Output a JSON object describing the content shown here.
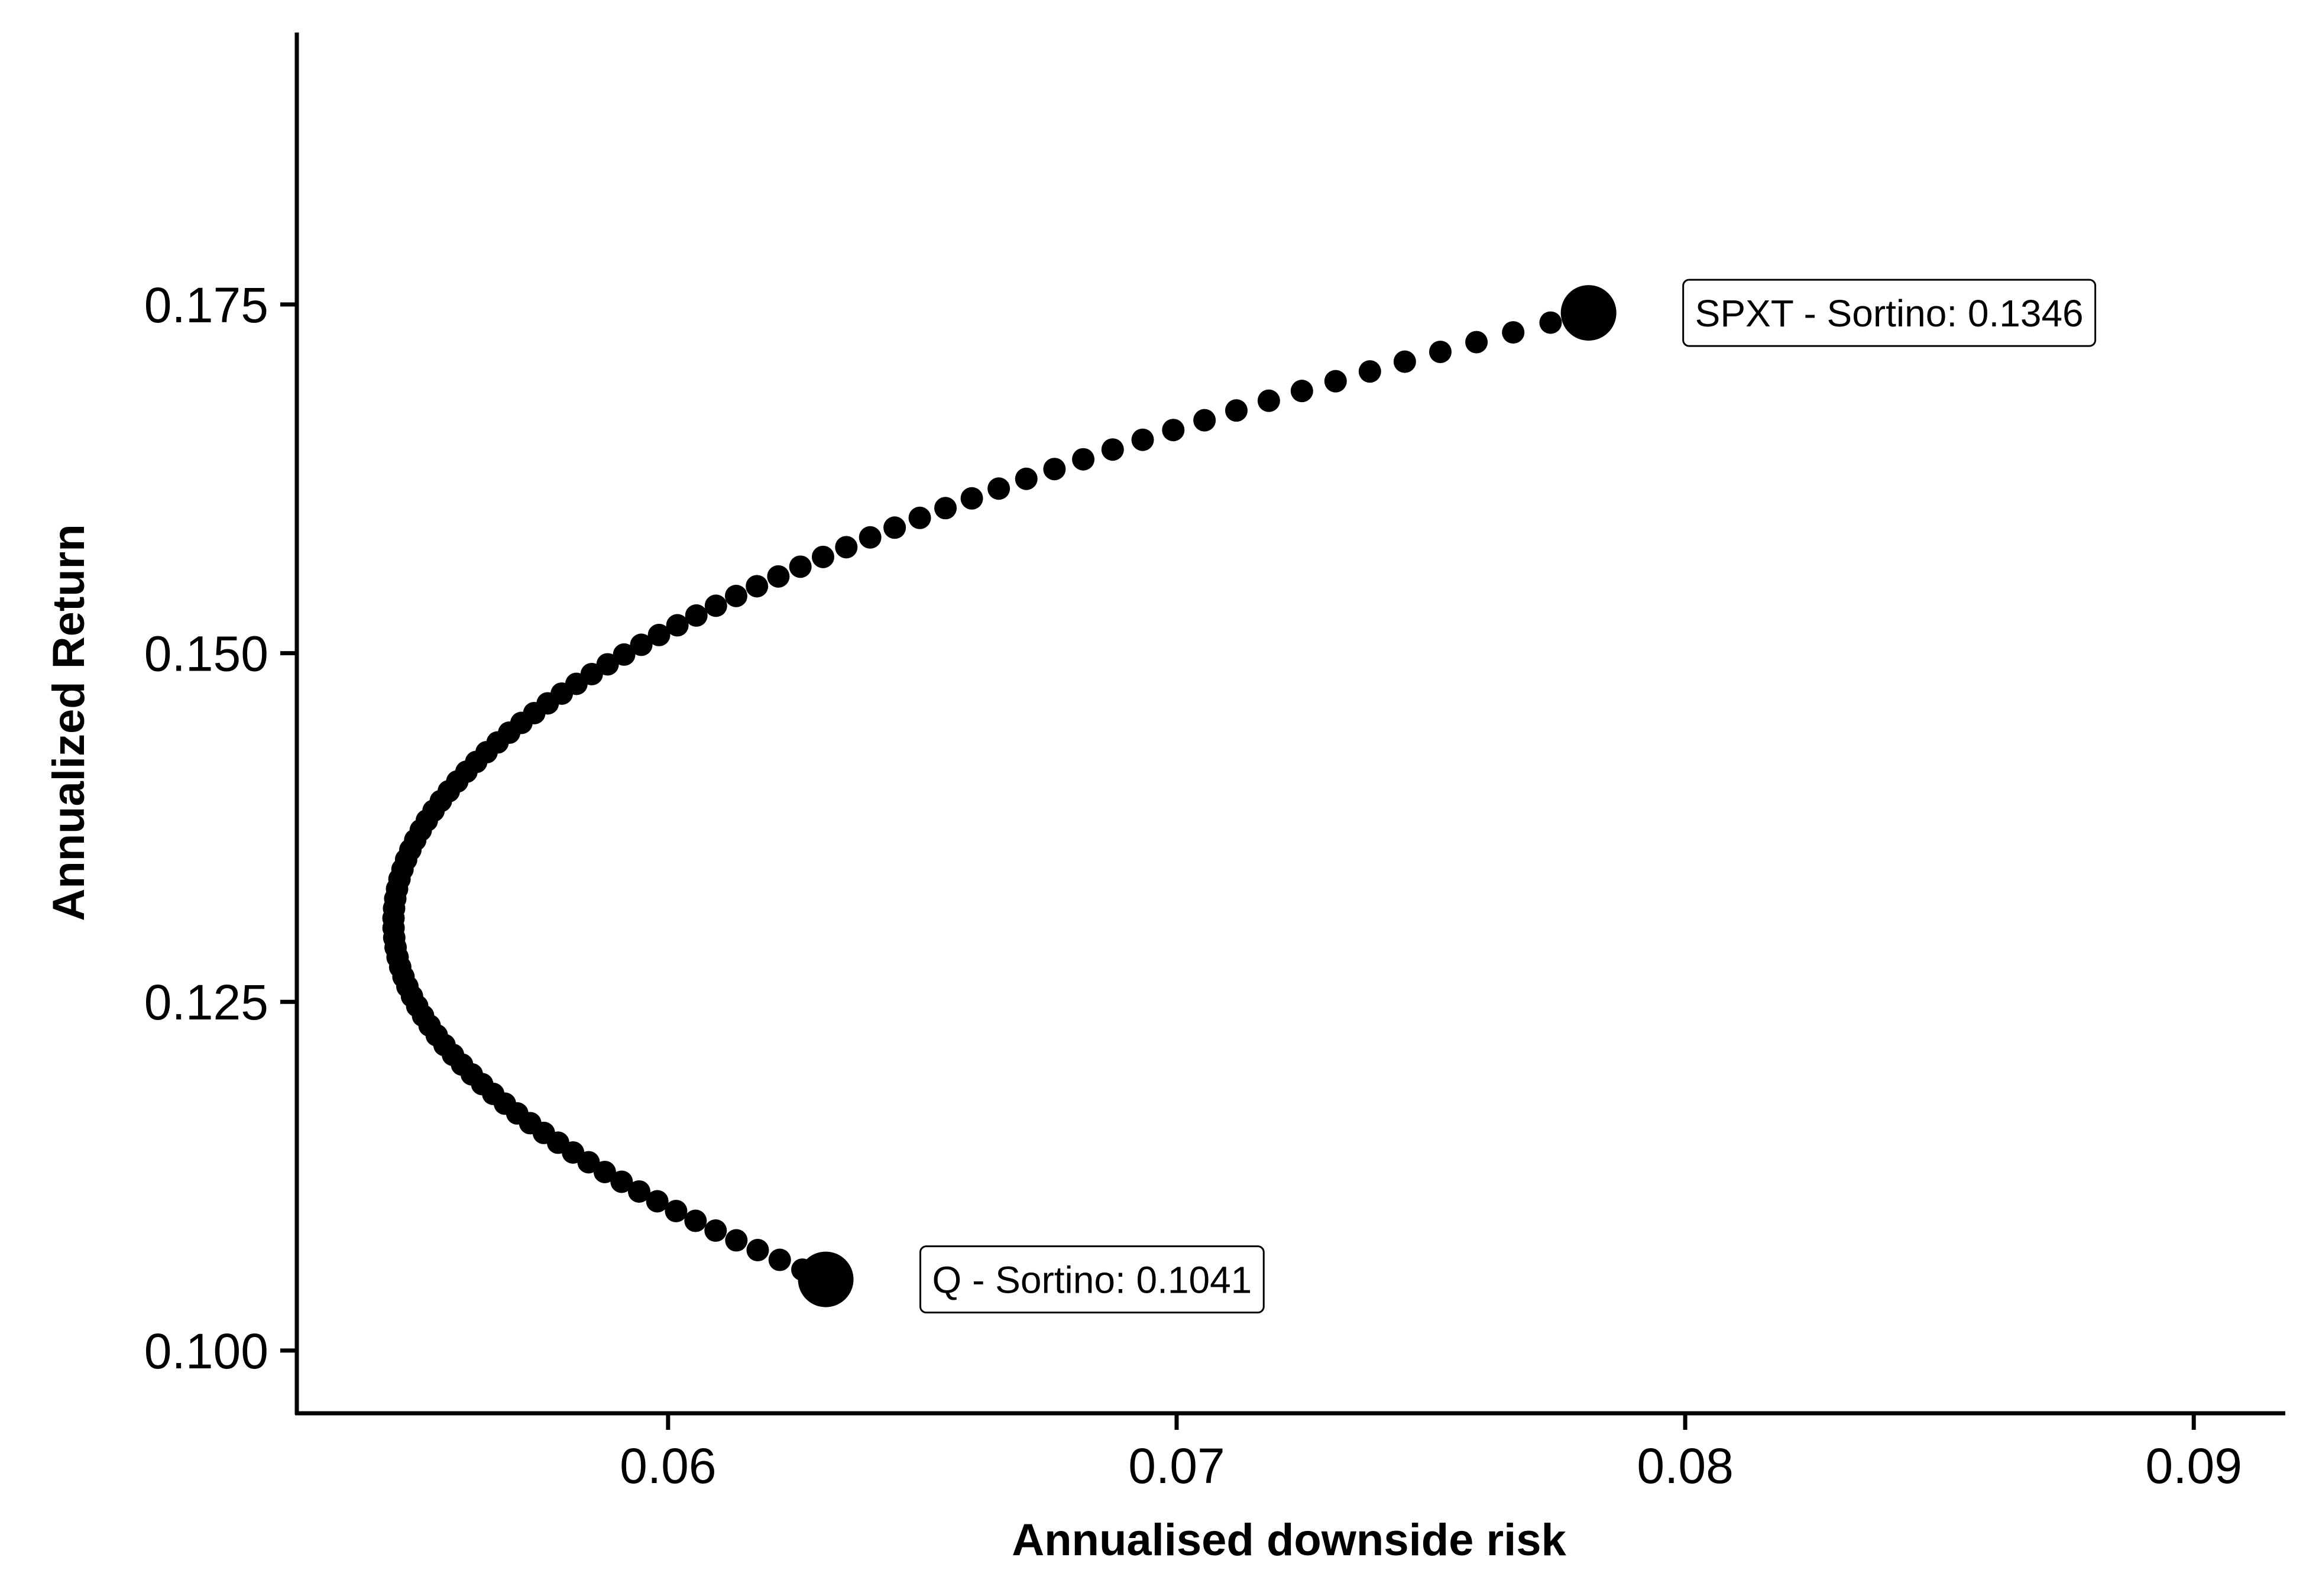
{
  "chart_data": {
    "type": "scatter",
    "xlabel": "Annualised downside risk",
    "ylabel": "Annualized Return",
    "xlim": [
      0.0527,
      0.0918
    ],
    "ylim": [
      0.0955,
      0.1945
    ],
    "x_ticks": [
      {
        "value": 0.06,
        "label": "0.06"
      },
      {
        "value": 0.07,
        "label": "0.07"
      },
      {
        "value": 0.08,
        "label": "0.08"
      },
      {
        "value": 0.09,
        "label": "0.09"
      }
    ],
    "y_ticks": [
      {
        "value": 0.1,
        "label": "0.100"
      },
      {
        "value": 0.125,
        "label": "0.125"
      },
      {
        "value": 0.15,
        "label": "0.150"
      },
      {
        "value": 0.175,
        "label": "0.175"
      }
    ],
    "frontier": {
      "y_start": 0.1051,
      "y_end": 0.1744,
      "y_vertex": 0.1307,
      "x_min": 0.0546,
      "x_at_start": 0.0631,
      "x_at_end": 0.0781,
      "n_points": 100
    },
    "highlighted_points": [
      {
        "x": 0.0781,
        "y": 0.1744,
        "label": "SPXT - Sortino: 0.1346"
      },
      {
        "x": 0.0631,
        "y": 0.1051,
        "label": "Q - Sortino: 0.1041"
      }
    ],
    "grid": false,
    "legend": "none"
  }
}
